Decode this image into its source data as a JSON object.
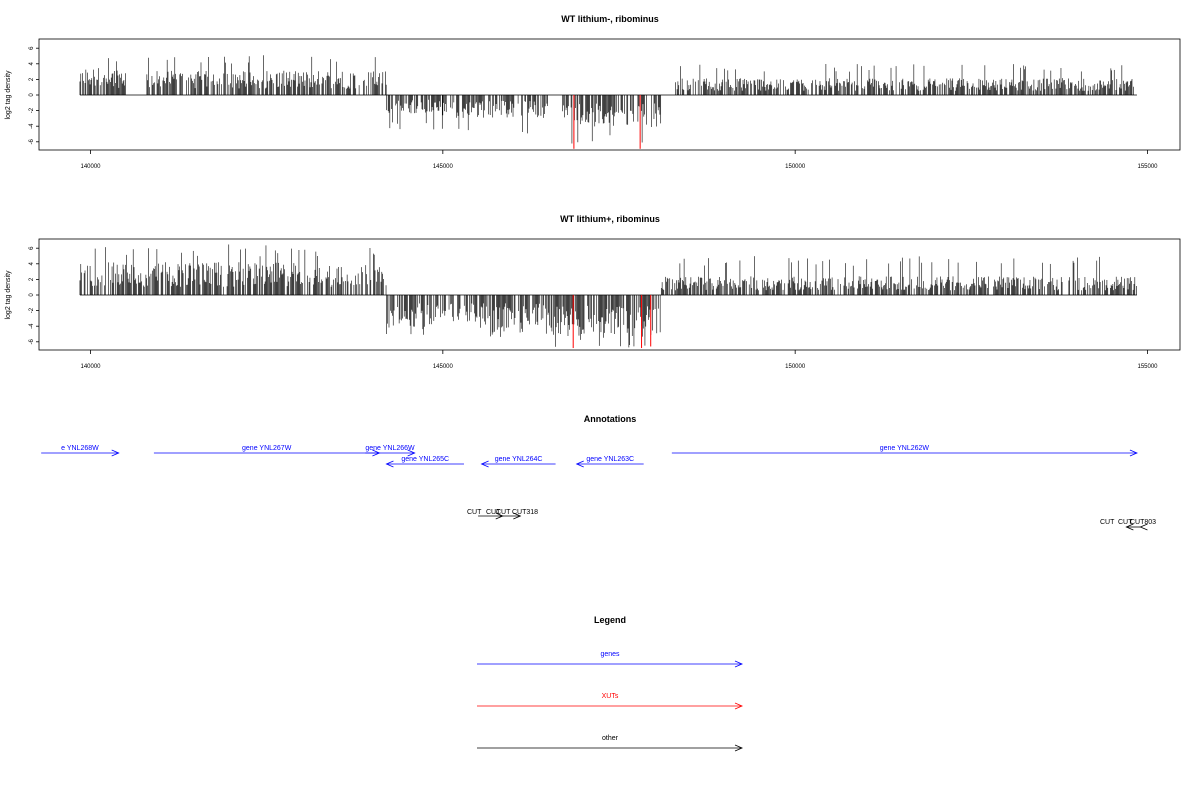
{
  "colors": {
    "genes": "#0000ff",
    "xuts": "#ff0000",
    "other": "#000000",
    "frame": "#000000"
  },
  "chart_data": [
    {
      "type": "bar",
      "title": "WT lithium-, ribominus",
      "ylabel": "log2 tag density",
      "xlim": [
        139800,
        154900
      ],
      "ylim": [
        -7,
        7
      ],
      "x_ticks": [
        140000,
        145000,
        150000,
        155000
      ],
      "y_ticks": [
        -6,
        -4,
        -2,
        0,
        2,
        4,
        6
      ],
      "grid": false,
      "segments": [
        {
          "x_start": 139850,
          "x_end": 140500,
          "sign": "positive",
          "typical": 3.0,
          "max": 5.2,
          "color": "#000000"
        },
        {
          "x_start": 140800,
          "x_end": 144200,
          "sign": "positive",
          "typical": 2.6,
          "max": 5.3,
          "color": "#000000"
        },
        {
          "x_start": 144200,
          "x_end": 145000,
          "sign": "negative",
          "typical": -2.0,
          "max": -4.5,
          "color": "#000000"
        },
        {
          "x_start": 145000,
          "x_end": 146500,
          "sign": "negative",
          "typical": -2.5,
          "max": -5.0,
          "color": "#000000"
        },
        {
          "x_start": 146700,
          "x_end": 148100,
          "sign": "negative",
          "typical": -3.5,
          "max": -6.5,
          "color": "#000000"
        },
        {
          "x_start": 148300,
          "x_end": 154850,
          "sign": "positive",
          "typical": 1.8,
          "max": 4.0,
          "color": "#000000"
        }
      ],
      "highlights": [
        {
          "x": 146860,
          "value": -6.9,
          "color": "#ff0000"
        },
        {
          "x": 147800,
          "value": -6.9,
          "color": "#ff0000"
        }
      ]
    },
    {
      "type": "bar",
      "title": "WT lithium+, ribominus",
      "ylabel": "log2 tag density",
      "xlim": [
        139800,
        154900
      ],
      "ylim": [
        -7,
        7
      ],
      "x_ticks": [
        140000,
        145000,
        150000,
        155000
      ],
      "y_ticks": [
        -6,
        -4,
        -2,
        0,
        2,
        4,
        6
      ],
      "grid": false,
      "segments": [
        {
          "x_start": 139850,
          "x_end": 144200,
          "sign": "positive",
          "typical": 3.5,
          "max": 6.5,
          "color": "#000000"
        },
        {
          "x_start": 144200,
          "x_end": 146500,
          "sign": "negative",
          "typical": -3.5,
          "max": -5.5,
          "color": "#000000"
        },
        {
          "x_start": 146500,
          "x_end": 148100,
          "sign": "negative",
          "typical": -4.5,
          "max": -6.8,
          "color": "#000000"
        },
        {
          "x_start": 148100,
          "x_end": 154850,
          "sign": "positive",
          "typical": 2.0,
          "max": 5.0,
          "color": "#000000"
        }
      ],
      "highlights": [
        {
          "x": 146850,
          "value": -6.8,
          "color": "#ff0000"
        },
        {
          "x": 147820,
          "value": -6.8,
          "color": "#ff0000"
        },
        {
          "x": 147950,
          "value": -6.6,
          "color": "#ff0000"
        }
      ]
    }
  ],
  "annotations": {
    "title": "Annotations",
    "genes": [
      {
        "label": "e YNL268W",
        "start": 139300,
        "end": 140400,
        "strand": "+",
        "row": 0
      },
      {
        "label": "gene YNL267W",
        "start": 140900,
        "end": 144100,
        "strand": "+",
        "row": 0
      },
      {
        "label": "gene YNL266W",
        "start": 143900,
        "end": 144600,
        "strand": "+",
        "row": 0
      },
      {
        "label": "gene YNL265C",
        "start": 144200,
        "end": 145300,
        "strand": "-",
        "row": 1
      },
      {
        "label": "gene YNL264C",
        "start": 145550,
        "end": 146600,
        "strand": "-",
        "row": 1
      },
      {
        "label": "gene YNL263C",
        "start": 146900,
        "end": 147850,
        "strand": "-",
        "row": 1
      },
      {
        "label": "gene YNL262W",
        "start": 148250,
        "end": 154850,
        "strand": "+",
        "row": 0
      }
    ],
    "other": [
      {
        "label": "CUT",
        "start": 145500,
        "end": 145850,
        "strand": "+"
      },
      {
        "label": "CUT318",
        "start": 145800,
        "end": 146100,
        "strand": "+"
      },
      {
        "label": "CUT",
        "start": 154700,
        "end": 155020,
        "strand": "-"
      },
      {
        "label": "CUT803",
        "start": 154900,
        "end": 155120,
        "strand": "-"
      }
    ],
    "other_text": [
      "CUT",
      "CUT",
      "CUT",
      "CUT318",
      "CUT",
      "CUT",
      "CUT803"
    ]
  },
  "legend": {
    "title": "Legend",
    "items": [
      {
        "label": "genes",
        "color": "#0000ff"
      },
      {
        "label": "XUTs",
        "color": "#ff0000"
      },
      {
        "label": "other",
        "color": "#000000"
      }
    ]
  }
}
